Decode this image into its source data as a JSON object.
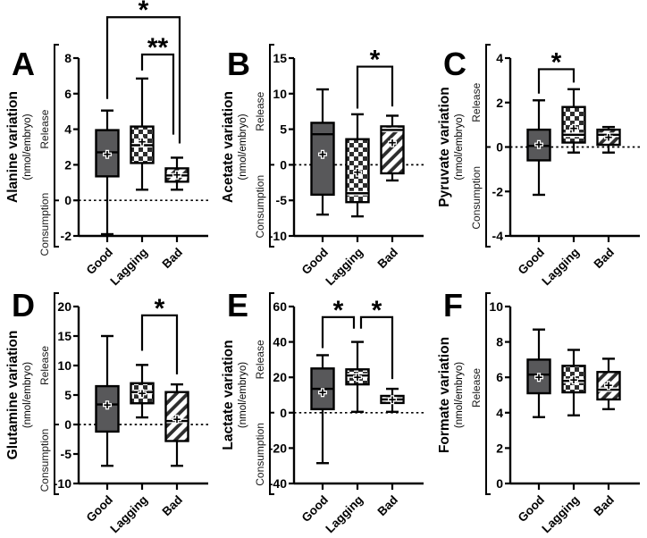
{
  "chart_data": {
    "type": "box",
    "layout": {
      "rows": 2,
      "cols": 3,
      "legend": "none",
      "grid": false
    },
    "categories": [
      "Good",
      "Lagging",
      "Bad"
    ],
    "pattern_by_category": {
      "Good": "solid",
      "Lagging": "checker",
      "Bad": "hatch"
    },
    "colors": {
      "solid_fill": "#58585a",
      "pattern_ink": "#2d2d2d",
      "line": "#000000",
      "background": "#ffffff"
    },
    "mean_marker": "+",
    "panels": [
      {
        "letter": "A",
        "title": "Alanine variation",
        "unit": "(nmol/embryo)",
        "release_label": "Release",
        "consumption_label": "Consumption",
        "ylim": [
          -2,
          8
        ],
        "yticks": [
          8,
          6,
          4,
          2,
          0,
          -2
        ],
        "zero_dotted_line": true,
        "boxes": [
          {
            "category": "Good",
            "pattern": "solid",
            "min": -1.9,
            "q1": 1.35,
            "median": 2.7,
            "q3": 3.95,
            "max": 5.05,
            "mean": 2.6
          },
          {
            "category": "Lagging",
            "pattern": "checker",
            "min": 0.6,
            "q1": 2.1,
            "median": 3.1,
            "q3": 4.15,
            "max": 6.85,
            "mean": 3.3
          },
          {
            "category": "Bad",
            "pattern": "hatch",
            "min": 0.6,
            "q1": 1.05,
            "median": 1.4,
            "q3": 1.8,
            "max": 2.4,
            "mean": 1.45
          }
        ],
        "significance": [
          {
            "from": 0,
            "to": 2,
            "label": "*",
            "bar_y": 10.3,
            "left_end": 5.7,
            "right_end": 3.2,
            "to_dx": 3
          },
          {
            "from": 1,
            "to": 2,
            "label": "**",
            "bar_y": 8.2,
            "left_end": 7.3,
            "right_end": 3.7,
            "to_dx": -4
          }
        ]
      },
      {
        "letter": "B",
        "title": "Acetate variation",
        "unit": "(nmol/embryo)",
        "release_label": "Release",
        "consumption_label": "Consumption",
        "ylim": [
          -10,
          15
        ],
        "yticks": [
          15,
          10,
          5,
          0,
          -5,
          -10
        ],
        "zero_dotted_line": true,
        "boxes": [
          {
            "category": "Good",
            "pattern": "solid",
            "min": -7.0,
            "q1": -4.2,
            "median": 4.3,
            "q3": 5.9,
            "max": 10.6,
            "mean": 1.5
          },
          {
            "category": "Lagging",
            "pattern": "checker",
            "min": -7.25,
            "q1": -5.25,
            "median": -4.0,
            "q3": 3.6,
            "max": 7.1,
            "mean": -1.0
          },
          {
            "category": "Bad",
            "pattern": "hatch",
            "min": -2.2,
            "q1": -1.2,
            "median": 4.9,
            "q3": 5.4,
            "max": 6.9,
            "mean": 3.1
          }
        ],
        "significance": [
          {
            "from": 1,
            "to": 2,
            "label": "*",
            "bar_y": 13.8,
            "left_end": 7.9,
            "right_end": 8.2
          }
        ]
      },
      {
        "letter": "C",
        "title": "Pyruvate variation",
        "unit": "(nmol/embryo)",
        "release_label": "Release",
        "consumption_label": "Consumption",
        "ylim": [
          -4,
          4
        ],
        "yticks": [
          4,
          2,
          0,
          -2,
          -4
        ],
        "zero_dotted_line": true,
        "boxes": [
          {
            "category": "Good",
            "pattern": "solid",
            "min": -2.15,
            "q1": -0.6,
            "median": 0.05,
            "q3": 0.78,
            "max": 2.1,
            "mean": 0.12
          },
          {
            "category": "Lagging",
            "pattern": "checker",
            "min": -0.25,
            "q1": 0.2,
            "median": 0.55,
            "q3": 1.8,
            "max": 2.6,
            "mean": 0.85
          },
          {
            "category": "Bad",
            "pattern": "hatch",
            "min": -0.25,
            "q1": 0.1,
            "median": 0.55,
            "q3": 0.78,
            "max": 0.9,
            "mean": 0.45
          }
        ],
        "significance": [
          {
            "from": 0,
            "to": 1,
            "label": "*",
            "bar_y": 3.5,
            "left_end": 2.4,
            "right_end": 2.9
          }
        ]
      },
      {
        "letter": "D",
        "title": "Glutamine variation",
        "unit": "(nmol/embryo)",
        "release_label": "Release",
        "consumption_label": "Consumption",
        "ylim": [
          -10,
          20
        ],
        "yticks": [
          20,
          15,
          10,
          5,
          0,
          -5,
          -10
        ],
        "zero_dotted_line": true,
        "boxes": [
          {
            "category": "Good",
            "pattern": "solid",
            "min": -7.0,
            "q1": -1.2,
            "median": 3.4,
            "q3": 6.5,
            "max": 15.0,
            "mean": 3.3
          },
          {
            "category": "Lagging",
            "pattern": "checker",
            "min": 1.2,
            "q1": 3.6,
            "median": 5.5,
            "q3": 7.0,
            "max": 10.1,
            "mean": 5.3
          },
          {
            "category": "Bad",
            "pattern": "hatch",
            "min": -7.0,
            "q1": -2.8,
            "median": 0.6,
            "q3": 5.5,
            "max": 6.8,
            "mean": 0.9
          }
        ],
        "significance": [
          {
            "from": 1,
            "to": 2,
            "label": "*",
            "bar_y": 18.5,
            "left_end": 12.5,
            "right_end": 8.5
          }
        ]
      },
      {
        "letter": "E",
        "title": "Lactate variation",
        "unit": "(nmol/embryo)",
        "release_label": "Release",
        "consumption_label": "Consumption",
        "ylim": [
          -40,
          60
        ],
        "yticks": [
          60,
          40,
          20,
          0,
          -20,
          -40
        ],
        "zero_dotted_line": true,
        "boxes": [
          {
            "category": "Good",
            "pattern": "solid",
            "min": -28.5,
            "q1": 2.0,
            "median": 13.5,
            "q3": 25.0,
            "max": 32.5,
            "mean": 11.5
          },
          {
            "category": "Lagging",
            "pattern": "checker",
            "min": 0.5,
            "q1": 16.0,
            "median": 21.0,
            "q3": 24.5,
            "max": 40.0,
            "mean": 20.0
          },
          {
            "category": "Bad",
            "pattern": "hatch",
            "min": 0.5,
            "q1": 5.5,
            "median": 7.5,
            "q3": 9.5,
            "max": 13.5,
            "mean": 7.5
          }
        ],
        "significance": [
          {
            "from": 0,
            "to": 1,
            "label": "*",
            "bar_y": 54,
            "left_end": 36.5,
            "right_end": 47.5,
            "to_dx": -4
          },
          {
            "from": 1,
            "to": 2,
            "label": "*",
            "bar_y": 54,
            "left_end": 47.5,
            "right_end": 19.0,
            "from_dx": 4
          }
        ]
      },
      {
        "letter": "F",
        "title": "Formate variation",
        "unit": "(nmol/embryo)",
        "release_label": "Release",
        "consumption_label": "",
        "ylim": [
          0,
          10
        ],
        "yticks": [
          10,
          8,
          6,
          4,
          2,
          0
        ],
        "zero_dotted_line": false,
        "boxes": [
          {
            "category": "Good",
            "pattern": "solid",
            "min": 3.75,
            "q1": 5.1,
            "median": 6.15,
            "q3": 7.0,
            "max": 8.7,
            "mean": 6.0
          },
          {
            "category": "Lagging",
            "pattern": "checker",
            "min": 3.85,
            "q1": 5.15,
            "median": 5.8,
            "q3": 6.65,
            "max": 7.55,
            "mean": 5.85
          },
          {
            "category": "Bad",
            "pattern": "hatch",
            "min": 4.2,
            "q1": 4.75,
            "median": 5.3,
            "q3": 6.3,
            "max": 7.05,
            "mean": 5.55
          }
        ],
        "significance": []
      }
    ]
  }
}
